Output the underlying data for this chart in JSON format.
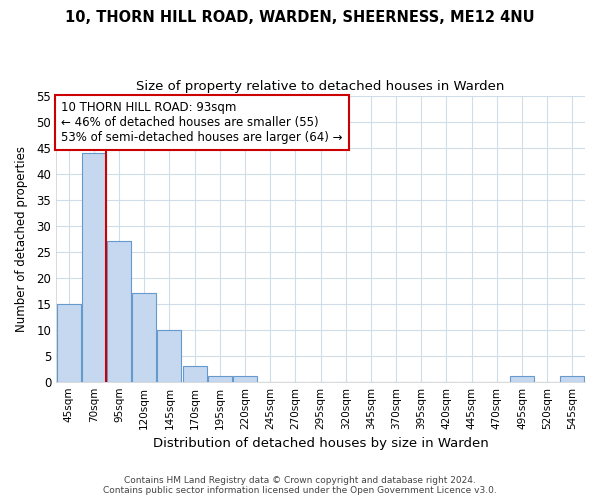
{
  "title1": "10, THORN HILL ROAD, WARDEN, SHEERNESS, ME12 4NU",
  "title2": "Size of property relative to detached houses in Warden",
  "xlabel": "Distribution of detached houses by size in Warden",
  "ylabel": "Number of detached properties",
  "footnote1": "Contains HM Land Registry data © Crown copyright and database right 2024.",
  "footnote2": "Contains public sector information licensed under the Open Government Licence v3.0.",
  "annotation_line1": "10 THORN HILL ROAD: 93sqm",
  "annotation_line2": "← 46% of detached houses are smaller (55)",
  "annotation_line3": "53% of semi-detached houses are larger (64) →",
  "bar_values": [
    15,
    44,
    27,
    17,
    10,
    3,
    1,
    1,
    0,
    0,
    0,
    0,
    0,
    0,
    0,
    0,
    0,
    0,
    1,
    0,
    1
  ],
  "categories": [
    "45sqm",
    "70sqm",
    "95sqm",
    "120sqm",
    "145sqm",
    "170sqm",
    "195sqm",
    "220sqm",
    "245sqm",
    "270sqm",
    "295sqm",
    "320sqm",
    "345sqm",
    "370sqm",
    "395sqm",
    "420sqm",
    "445sqm",
    "470sqm",
    "495sqm",
    "520sqm",
    "545sqm"
  ],
  "bar_color": "#c5d8f0",
  "bar_edge_color": "#6699cc",
  "vline_color": "#cc0000",
  "ylim": [
    0,
    55
  ],
  "yticks": [
    0,
    5,
    10,
    15,
    20,
    25,
    30,
    35,
    40,
    45,
    50,
    55
  ],
  "background_color": "#ffffff",
  "grid_color": "#d0dce8",
  "annotation_box_edge": "#cc0000",
  "annotation_box_bg": "#ffffff"
}
